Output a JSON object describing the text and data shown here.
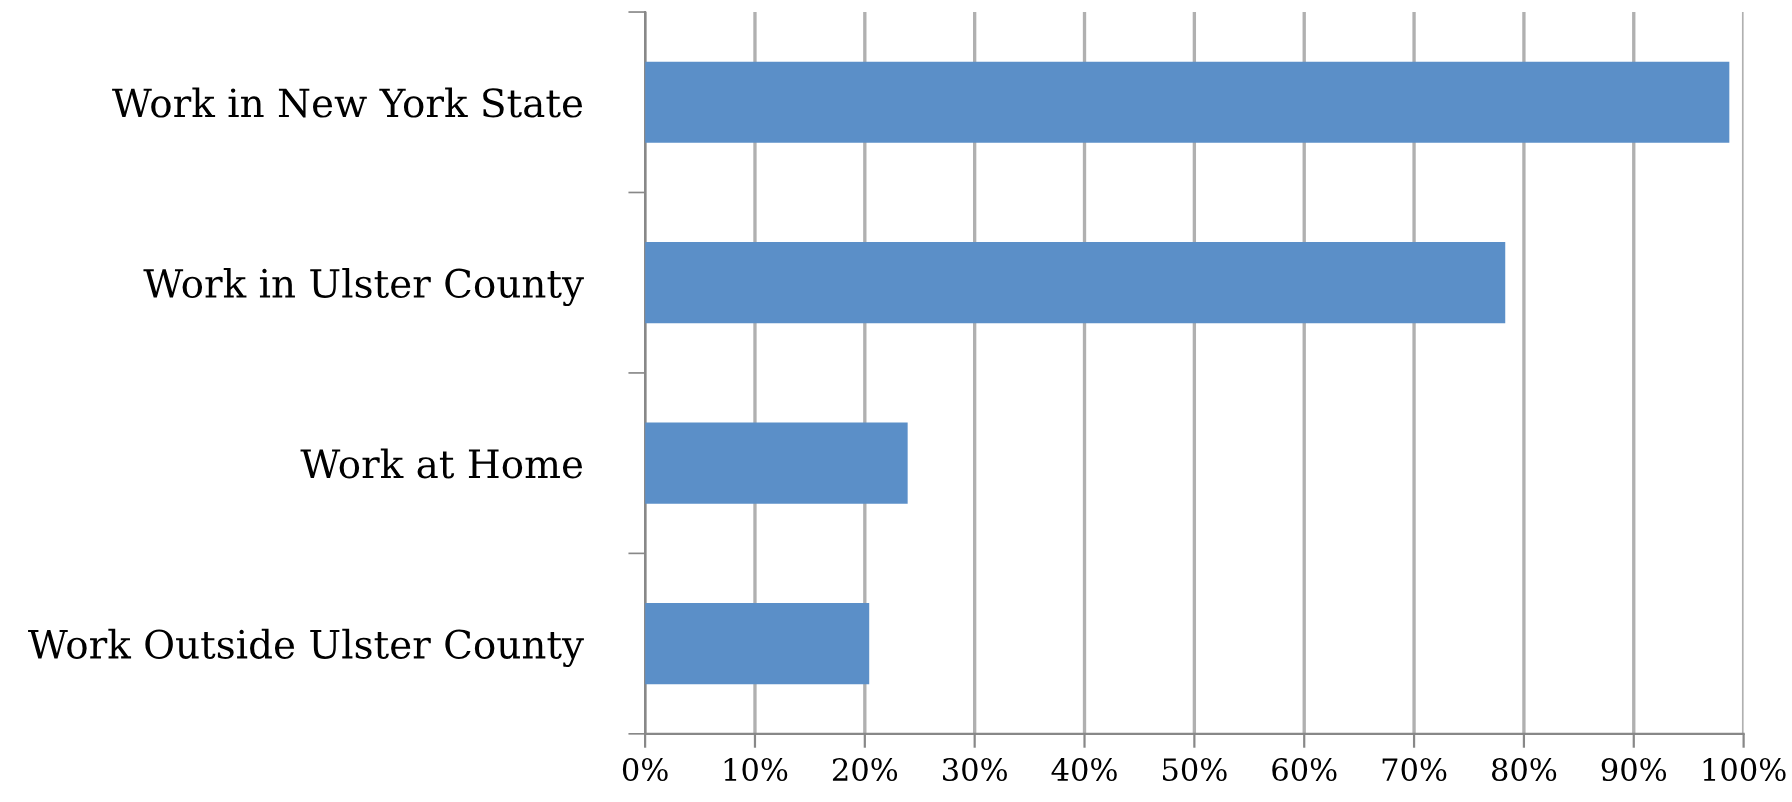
{
  "chart_data": {
    "type": "bar",
    "orientation": "horizontal",
    "categories": [
      "Work in New York State",
      "Work in Ulster County",
      "Work at Home",
      "Work Outside Ulster County"
    ],
    "values": [
      98.7,
      78.3,
      23.9,
      20.4
    ],
    "color": "#5b8fc8",
    "xlim": [
      0,
      100
    ],
    "xticks": [
      {
        "value": 0,
        "label": "0%"
      },
      {
        "value": 10,
        "label": "10%"
      },
      {
        "value": 20,
        "label": "20%"
      },
      {
        "value": 30,
        "label": "30%"
      },
      {
        "value": 40,
        "label": "40%"
      },
      {
        "value": 50,
        "label": "50%"
      },
      {
        "value": 60,
        "label": "60%"
      },
      {
        "value": 70,
        "label": "70%"
      },
      {
        "value": 80,
        "label": "80%"
      },
      {
        "value": 90,
        "label": "90%"
      },
      {
        "value": 100,
        "label": "100%"
      }
    ],
    "grid": "x",
    "legend": false
  }
}
